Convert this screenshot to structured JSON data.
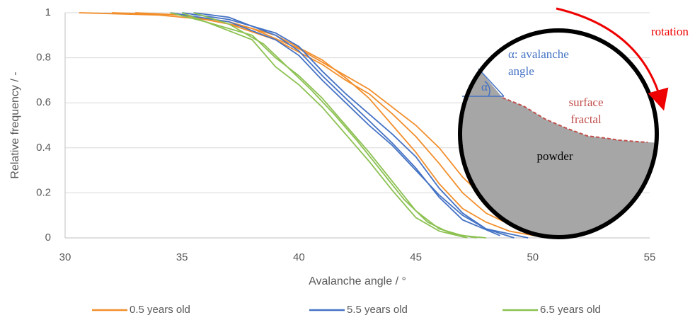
{
  "chart_data": {
    "type": "line",
    "xlabel": "Avalanche angle / °",
    "ylabel": "Relative frequency / -",
    "xlim": [
      30,
      55
    ],
    "xticks": [
      30,
      35,
      40,
      45,
      50,
      55
    ],
    "ylim": [
      0,
      1
    ],
    "yticks": [
      0,
      0.2,
      0.4,
      0.6,
      0.8,
      1
    ],
    "grid": true,
    "series": [
      {
        "name": "0.5 years old",
        "color": "#f28e2b",
        "runs": [
          {
            "x": [
              30.6,
              34,
              36,
              38,
              40,
              42,
              43,
              44,
              45,
              46,
              47,
              48,
              49,
              50,
              51.3
            ],
            "values": [
              1,
              0.99,
              0.97,
              0.93,
              0.84,
              0.72,
              0.66,
              0.58,
              0.5,
              0.4,
              0.27,
              0.17,
              0.1,
              0.04,
              0.01
            ]
          },
          {
            "x": [
              33,
              35,
              37,
              39,
              41,
              42,
              43,
              44,
              45,
              46,
              47,
              48,
              49,
              50.6
            ],
            "values": [
              1,
              0.99,
              0.95,
              0.88,
              0.77,
              0.7,
              0.64,
              0.55,
              0.45,
              0.33,
              0.2,
              0.11,
              0.06,
              0.01
            ]
          },
          {
            "x": [
              32,
              35,
              37,
              39,
              41,
              42,
              43,
              44,
              45,
              46,
              47,
              48,
              49,
              50.6
            ],
            "values": [
              1,
              0.99,
              0.96,
              0.9,
              0.79,
              0.71,
              0.62,
              0.5,
              0.38,
              0.24,
              0.13,
              0.07,
              0.03,
              0
            ]
          }
        ]
      },
      {
        "name": "5.5 years old",
        "color": "#4472c4",
        "runs": [
          {
            "x": [
              35,
              37,
              39,
              40,
              41,
              42,
              43,
              44,
              45,
              46,
              47,
              48,
              49.8
            ],
            "values": [
              1,
              0.97,
              0.91,
              0.85,
              0.74,
              0.64,
              0.55,
              0.46,
              0.36,
              0.22,
              0.11,
              0.04,
              0
            ]
          },
          {
            "x": [
              35.5,
              37,
              39,
              40,
              41,
              42,
              43,
              44,
              45,
              46,
              47,
              48.6
            ],
            "values": [
              1,
              0.98,
              0.9,
              0.83,
              0.72,
              0.62,
              0.52,
              0.42,
              0.31,
              0.18,
              0.08,
              0.01
            ]
          },
          {
            "x": [
              34.5,
              37,
              39,
              40,
              41,
              42,
              43,
              44,
              45,
              46,
              47,
              48,
              49.2
            ],
            "values": [
              1,
              0.96,
              0.88,
              0.81,
              0.7,
              0.6,
              0.5,
              0.41,
              0.3,
              0.19,
              0.1,
              0.04,
              0
            ]
          }
        ]
      },
      {
        "name": "6.5 years old",
        "color": "#8cc152",
        "runs": [
          {
            "x": [
              34.5,
              36,
              38,
              39,
              40,
              41,
              42,
              43,
              44,
              45,
              46,
              47,
              48
            ],
            "values": [
              1,
              0.96,
              0.9,
              0.8,
              0.72,
              0.62,
              0.5,
              0.38,
              0.25,
              0.12,
              0.04,
              0.01,
              0
            ]
          },
          {
            "x": [
              35,
              36.5,
              38,
              39,
              40,
              41,
              42,
              43,
              44,
              45,
              46,
              47.2
            ],
            "values": [
              1,
              0.94,
              0.88,
              0.76,
              0.68,
              0.58,
              0.46,
              0.34,
              0.21,
              0.09,
              0.03,
              0
            ]
          },
          {
            "x": [
              35.5,
              37,
              38.5,
              39.5,
              40.5,
              41.5,
              42.5,
              43.5,
              44.5,
              45.5,
              46.5,
              47.6
            ],
            "values": [
              1,
              0.95,
              0.86,
              0.76,
              0.66,
              0.55,
              0.43,
              0.3,
              0.17,
              0.07,
              0.02,
              0
            ]
          }
        ]
      }
    ]
  },
  "diagram": {
    "rotation": "rotation",
    "alpha_label": [
      "α: avalanche",
      "angle"
    ],
    "alpha": "α",
    "surface_label": [
      "surface",
      "fractal"
    ],
    "powder": "powder"
  }
}
